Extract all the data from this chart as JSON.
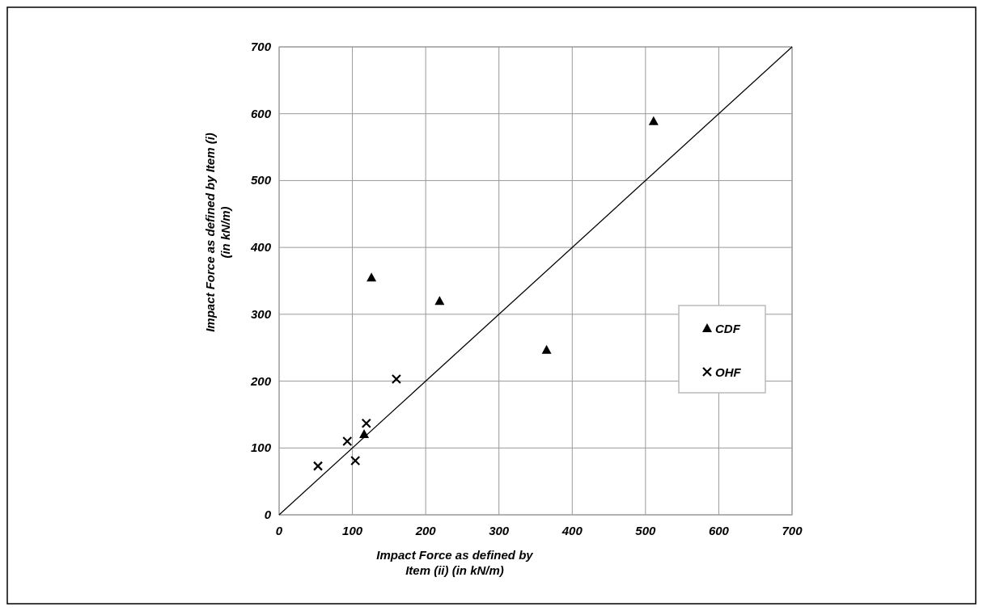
{
  "chart_data": {
    "type": "scatter",
    "xlabel": "Impact Force as defined by\nItem (ii) (in kN/m)",
    "ylabel": "Impact Force as defined by Item (i)\n(in kN/m)",
    "xlim": [
      0,
      700
    ],
    "ylim": [
      0,
      700
    ],
    "xticks": [
      0,
      100,
      200,
      300,
      400,
      500,
      600,
      700
    ],
    "yticks": [
      0,
      100,
      200,
      300,
      400,
      500,
      600,
      700
    ],
    "grid": true,
    "legend": "right",
    "series": [
      {
        "name": "CDF",
        "color": "#000000",
        "marker": "triangle",
        "x": [
          126,
          219,
          116,
          511,
          365
        ],
        "values": [
          355,
          320,
          121,
          589,
          247
        ]
      },
      {
        "name": "OHF",
        "color": "#000000",
        "marker": "cross",
        "x": [
          160,
          119,
          93,
          104,
          53
        ],
        "values": [
          203,
          137,
          110,
          81,
          73
        ]
      },
      {
        "type": "line",
        "color": "#000000",
        "x": [
          0,
          700
        ],
        "values": [
          0,
          700
        ]
      }
    ]
  }
}
